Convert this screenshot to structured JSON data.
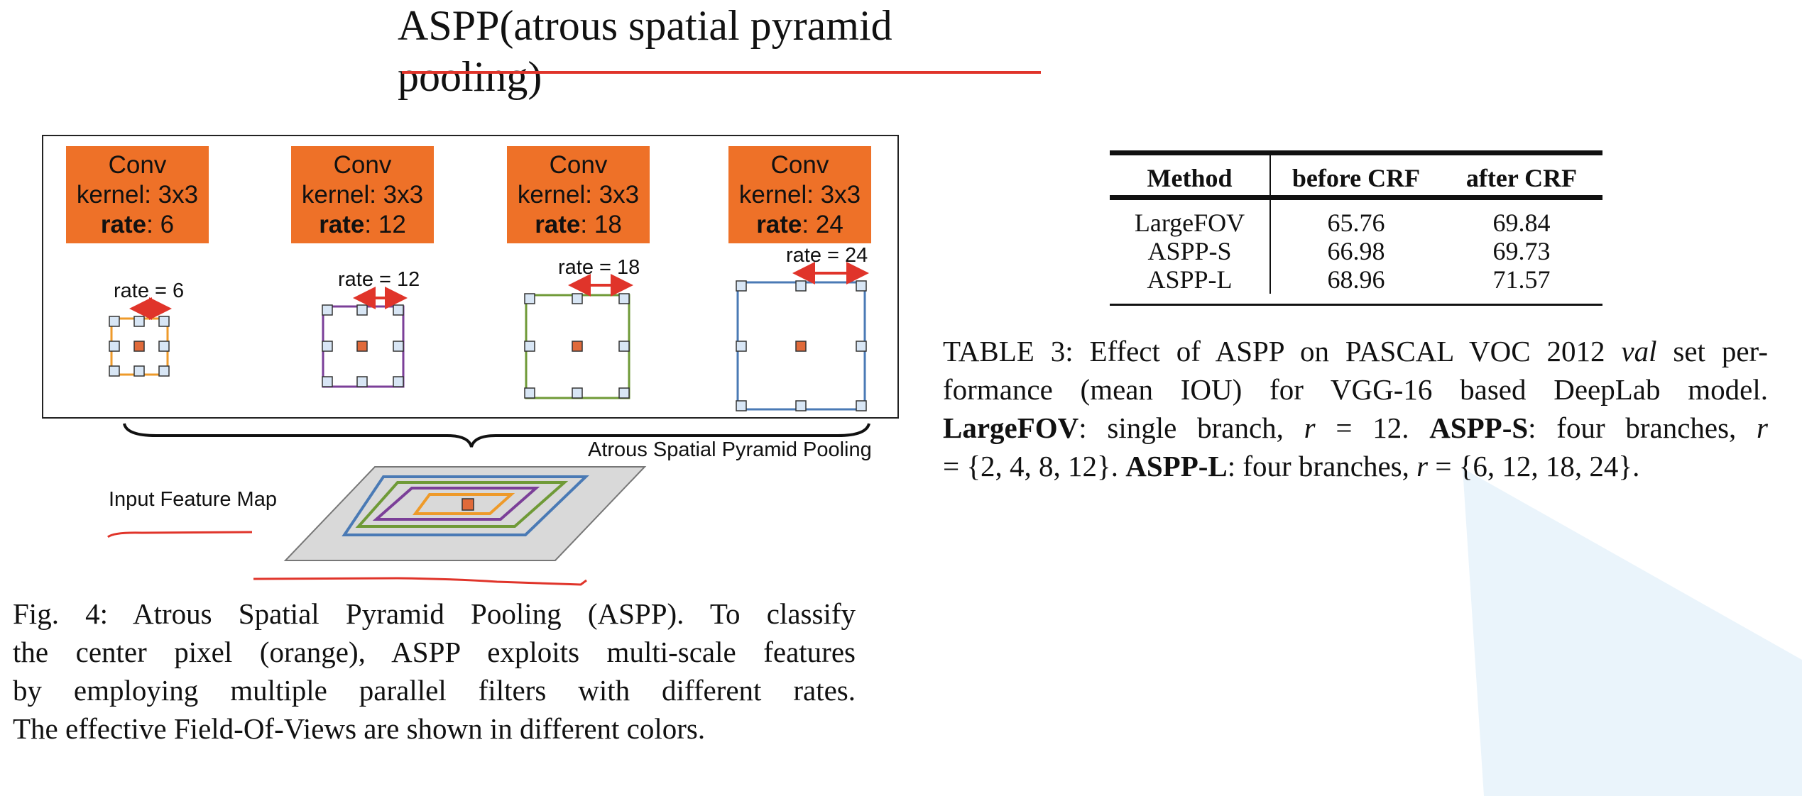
{
  "title": "ASPP(atrous spatial pyramid pooling)",
  "figure": {
    "conv_boxes": [
      {
        "line1": "Conv",
        "line2": "kernel: 3x3",
        "rate_word": "rate",
        "rate_value": ": 6"
      },
      {
        "line1": "Conv",
        "line2": "kernel: 3x3",
        "rate_word": "rate",
        "rate_value": ": 12"
      },
      {
        "line1": "Conv",
        "line2": "kernel: 3x3",
        "rate_word": "rate",
        "rate_value": ": 18"
      },
      {
        "line1": "Conv",
        "line2": "kernel: 3x3",
        "rate_word": "rate",
        "rate_value": ": 24"
      }
    ],
    "rate_labels": [
      "rate = 6",
      "rate = 12",
      "rate = 18",
      "rate = 24"
    ],
    "aspp_label": "Atrous Spatial Pyramid Pooling",
    "input_label": "Input Feature Map",
    "colors": {
      "orange": "#ee7128",
      "purple": "#7b3f98",
      "green": "#6f9a37",
      "blue": "#4a7ab5",
      "center": "#e06a3a",
      "annotation_red": "#e0342a"
    }
  },
  "fig_caption": {
    "lines": [
      "Fig. 4: Atrous Spatial Pyramid Pooling (ASPP). To classify",
      "the center pixel (orange), ASPP exploits multi-scale features",
      "by employing multiple parallel filters with different rates.",
      "The effective Field-Of-Views are shown in different colors."
    ]
  },
  "table": {
    "headers": [
      "Method",
      "before CRF",
      "after CRF"
    ],
    "rows": [
      [
        "LargeFOV",
        "65.76",
        "69.84"
      ],
      [
        "ASPP-S",
        "66.98",
        "69.73"
      ],
      [
        "ASPP-L",
        "68.96",
        "71.57"
      ]
    ]
  },
  "table_caption": {
    "line1": "TABLE 3: Effect of ASPP on PASCAL VOC 2012 ",
    "line1_italic": "val",
    "line1_end": " set per-",
    "line2": "formance (mean IOU) for VGG-16 based DeepLab model.",
    "line3_b1": "LargeFOV",
    "line3_t1": ": single branch, ",
    "line3_m1": "r",
    "line3_t2": " = 12. ",
    "line3_b2": "ASPP-S",
    "line3_t3": ": four branches, ",
    "line3_m2": "r",
    "line4_t1": "= {2, 4, 8, 12}. ",
    "line4_b1": "ASPP-L",
    "line4_t2": ": four branches, ",
    "line4_m1": "r",
    "line4_t3": " = {6, 12, 18, 24}."
  }
}
